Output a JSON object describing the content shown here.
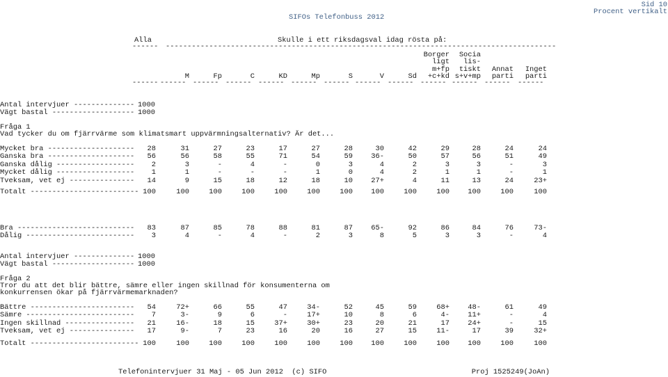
{
  "page": {
    "title": "SIFOs Telefonbuss 2012",
    "page_no": "Sid 10",
    "page_type": "Procent vertikalt"
  },
  "header": {
    "alla": "Alla",
    "question": "Skulle i ett riksdagsval idag rösta på:",
    "rule_short": "------",
    "rule_long": "------------------------------------------------------------------------------------------",
    "columns": [
      {
        "l1": "",
        "l2": "",
        "l3": "",
        "l4": "M"
      },
      {
        "l1": "",
        "l2": "",
        "l3": "",
        "l4": "Fp"
      },
      {
        "l1": "",
        "l2": "",
        "l3": "",
        "l4": "C"
      },
      {
        "l1": "",
        "l2": "",
        "l3": "",
        "l4": "KD"
      },
      {
        "l1": "",
        "l2": "",
        "l3": "",
        "l4": "Mp"
      },
      {
        "l1": "",
        "l2": "",
        "l3": "",
        "l4": "S"
      },
      {
        "l1": "",
        "l2": "",
        "l3": "",
        "l4": "V"
      },
      {
        "l1": "",
        "l2": "",
        "l3": "",
        "l4": "Sd"
      },
      {
        "l1": "Borger",
        "l2": "ligt",
        "l3": "m+fp",
        "l4": "+c+kd"
      },
      {
        "l1": "Socia",
        "l2": "lis-",
        "l3": "tiskt",
        "l4": "s+v+mp"
      },
      {
        "l1": "",
        "l2": "",
        "l3": "Annat",
        "l4": "parti"
      },
      {
        "l1": "",
        "l2": "",
        "l3": "Inget",
        "l4": "parti"
      }
    ]
  },
  "block1": {
    "antal_label": "Antal intervjuer --------------",
    "antal_value": "1000",
    "vagt_label": "Vägt bastal -------------------",
    "vagt_value": "1000",
    "fraga_no": "Fråga 1",
    "fraga_text": "Vad tycker du om fjärrvärme som klimatsmart uppvärmningsalternativ? Är det...",
    "rows": [
      {
        "label": "Mycket bra --------------------",
        "values": [
          "28",
          "31",
          "27",
          "23",
          "17",
          "27",
          "28",
          "30",
          "42",
          "29",
          "28",
          "24",
          "24"
        ]
      },
      {
        "label": "Ganska bra --------------------",
        "values": [
          "56",
          "56",
          "58",
          "55",
          "71",
          "54",
          "59",
          "36-",
          "50",
          "57",
          "56",
          "51",
          "49"
        ]
      },
      {
        "label": "Ganska dålig ------------------",
        "values": [
          "2",
          "3",
          "-",
          "4",
          "-",
          "0",
          "3",
          "4",
          "2",
          "3",
          "3",
          "-",
          "3"
        ]
      },
      {
        "label": "Mycket dålig ------------------",
        "values": [
          "1",
          "1",
          "-",
          "-",
          "-",
          "1",
          "0",
          "4",
          "2",
          "1",
          "1",
          "-",
          "1"
        ]
      },
      {
        "label": "Tveksam, vet ej ---------------",
        "values": [
          "14",
          "9",
          "15",
          "18",
          "12",
          "18",
          "10",
          "27+",
          "4",
          "11",
          "13",
          "24",
          "23+"
        ]
      }
    ],
    "total": {
      "label": "Totalt -------------------------",
      "values": [
        "100",
        "100",
        "100",
        "100",
        "100",
        "100",
        "100",
        "100",
        "100",
        "100",
        "100",
        "100",
        "100"
      ]
    },
    "summary": [
      {
        "label": "Bra ---------------------------",
        "values": [
          "83",
          "87",
          "85",
          "78",
          "88",
          "81",
          "87",
          "65-",
          "92",
          "86",
          "84",
          "76",
          "73-"
        ]
      },
      {
        "label": "Dålig -------------------------",
        "values": [
          "3",
          "4",
          "-",
          "4",
          "-",
          "2",
          "3",
          "8",
          "5",
          "3",
          "3",
          "-",
          "4"
        ]
      }
    ]
  },
  "block2": {
    "antal_label": "Antal intervjuer --------------",
    "antal_value": "1000",
    "vagt_label": "Vägt bastal -------------------",
    "vagt_value": "1000",
    "fraga_no": "Fråga 2",
    "fraga_line1": "Tror du att det blir bättre, sämre eller ingen skillnad för konsumenterna om",
    "fraga_line2": "konkurrensen ökar på fjärrvärmemarknaden?",
    "rows": [
      {
        "label": "Bättre ------------------------",
        "values": [
          "54",
          "72+",
          "66",
          "55",
          "47",
          "34-",
          "52",
          "45",
          "59",
          "68+",
          "48-",
          "61",
          "49"
        ]
      },
      {
        "label": "Sämre -------------------------",
        "values": [
          "7",
          "3-",
          "9",
          "6",
          "-",
          "17+",
          "10",
          "8",
          "6",
          "4-",
          "11+",
          "-",
          "4"
        ]
      },
      {
        "label": "Ingen skillnad ----------------",
        "values": [
          "21",
          "16-",
          "18",
          "15",
          "37+",
          "30+",
          "23",
          "20",
          "21",
          "17",
          "24+",
          "-",
          "15"
        ]
      },
      {
        "label": "Tveksam, vet ej ---------------",
        "values": [
          "17",
          "9-",
          "7",
          "23",
          "16",
          "20",
          "16",
          "27",
          "15",
          "11-",
          "17",
          "39",
          "32+"
        ]
      }
    ],
    "total": {
      "label": "Totalt -------------------------",
      "values": [
        "100",
        "100",
        "100",
        "100",
        "100",
        "100",
        "100",
        "100",
        "100",
        "100",
        "100",
        "100",
        "100"
      ]
    }
  },
  "footer": {
    "left": "Telefonintervjuer 31 Maj - 05 Jun 2012  (c) SIFO",
    "right": "Proj 1525249(JoAn)"
  }
}
